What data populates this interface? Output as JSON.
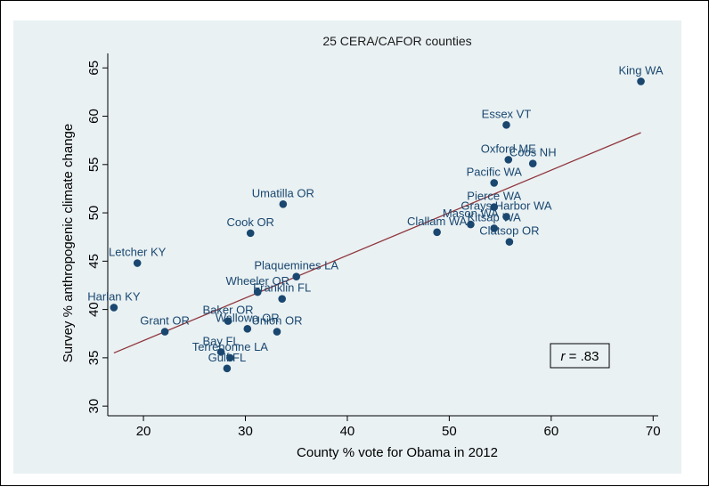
{
  "chart_data": {
    "type": "scatter",
    "title": "25 CERA/CAFOR counties",
    "xlabel": "County % vote for Obama in 2012",
    "ylabel": "Survey % anthropogenic climate change",
    "xlim": [
      16.5,
      70.5
    ],
    "ylim": [
      29,
      66.5
    ],
    "xticks": [
      20,
      30,
      40,
      50,
      60,
      70
    ],
    "yticks": [
      30,
      35,
      40,
      45,
      50,
      55,
      60,
      65
    ],
    "grid": false,
    "legend": "none",
    "points": [
      {
        "label": "King WA",
        "x": 68.8,
        "y": 63.6
      },
      {
        "label": "Essex VT",
        "x": 55.6,
        "y": 59.1
      },
      {
        "label": "Oxford ME",
        "x": 55.8,
        "y": 55.5
      },
      {
        "label": "Coos NH",
        "x": 58.2,
        "y": 55.1
      },
      {
        "label": "Pacific WA",
        "x": 54.4,
        "y": 53.1
      },
      {
        "label": "Pierce WA",
        "x": 54.4,
        "y": 50.6
      },
      {
        "label": "Grays Harbor WA",
        "x": 55.6,
        "y": 49.6
      },
      {
        "label": "Mason WA",
        "x": 52.1,
        "y": 48.8
      },
      {
        "label": "Kitsap WA",
        "x": 54.4,
        "y": 48.4
      },
      {
        "label": "Clallam WA",
        "x": 48.8,
        "y": 48.0
      },
      {
        "label": "Clatsop OR",
        "x": 55.9,
        "y": 47.0
      },
      {
        "label": "Umatilla OR",
        "x": 33.7,
        "y": 50.9
      },
      {
        "label": "Cook OR",
        "x": 30.5,
        "y": 47.9
      },
      {
        "label": "Letcher KY",
        "x": 19.4,
        "y": 44.8
      },
      {
        "label": "Plaquemines LA",
        "x": 35.0,
        "y": 43.4
      },
      {
        "label": "Wheeler OR",
        "x": 31.2,
        "y": 41.8
      },
      {
        "label": "Franklin FL",
        "x": 33.6,
        "y": 41.1
      },
      {
        "label": "Harlan KY",
        "x": 17.1,
        "y": 40.2
      },
      {
        "label": "Baker OR",
        "x": 28.3,
        "y": 38.8
      },
      {
        "label": "Wallowa OR",
        "x": 30.2,
        "y": 38.0
      },
      {
        "label": "Union OR",
        "x": 33.1,
        "y": 37.7
      },
      {
        "label": "Grant OR",
        "x": 22.1,
        "y": 37.7
      },
      {
        "label": "Bay FL",
        "x": 27.6,
        "y": 35.6
      },
      {
        "label": "Terrebonne LA",
        "x": 28.5,
        "y": 35.0
      },
      {
        "label": "Gulf FL",
        "x": 28.2,
        "y": 33.9
      }
    ],
    "fit_line": {
      "x0": 17.1,
      "y0": 35.5,
      "x1": 68.8,
      "y1": 58.3
    },
    "annotation": {
      "prefix": "r",
      "text": " = .83"
    },
    "colors": {
      "panel": "#e9f1f3",
      "point": "#1a476f",
      "label": "#1a476f",
      "line": "#90353b",
      "axis": "#000000"
    }
  }
}
